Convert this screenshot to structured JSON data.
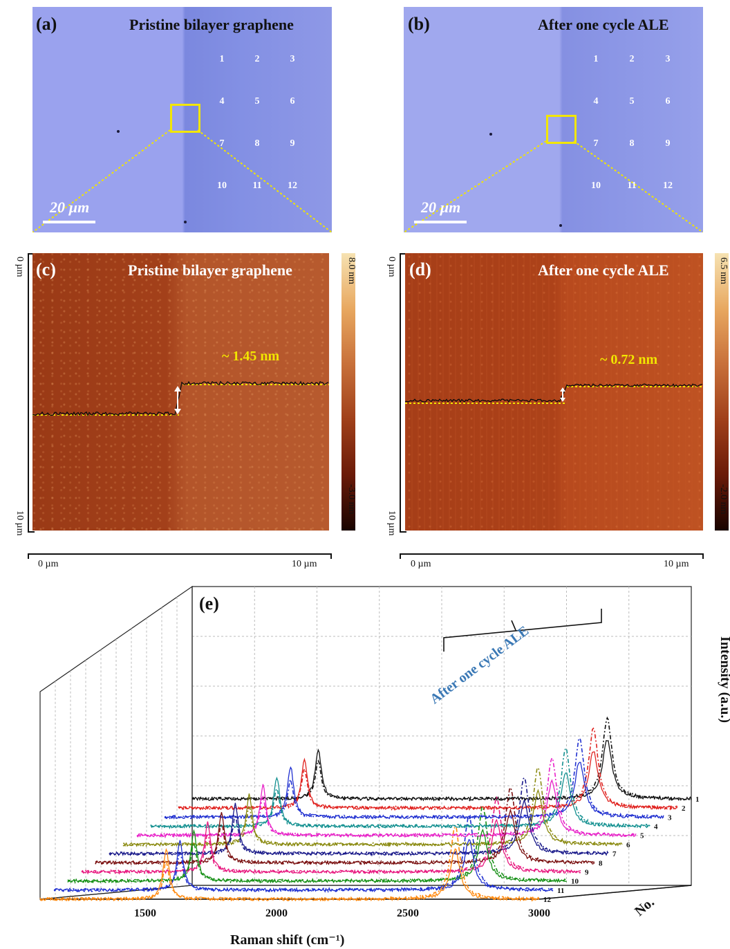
{
  "panels": {
    "a": {
      "label": "(a)",
      "title": "Pristine bilayer graphene",
      "scalebar": "20 µm",
      "grid_numbers": [
        "1",
        "2",
        "3",
        "4",
        "5",
        "6",
        "7",
        "8",
        "9",
        "10",
        "11",
        "12"
      ]
    },
    "b": {
      "label": "(b)",
      "title": "After one cycle ALE",
      "scalebar": "20 µm",
      "grid_numbers": [
        "1",
        "2",
        "3",
        "4",
        "5",
        "6",
        "7",
        "8",
        "9",
        "10",
        "11",
        "12"
      ]
    },
    "c": {
      "label": "(c)",
      "title": "Pristine bilayer graphene",
      "step_height": "~ 1.45 nm",
      "colorbar_max": "8.0 nm",
      "colorbar_min": "-3.0 nm",
      "y_top": "0 µm",
      "y_bottom": "10 µm",
      "x_left": "0 µm",
      "x_right": "10 µm"
    },
    "d": {
      "label": "(d)",
      "title": "After one cycle ALE",
      "step_height": "~ 0.72 nm",
      "colorbar_max": "6.5 nm",
      "colorbar_min": "-2.0 nm",
      "y_top": "0 µm",
      "y_bottom": "10 µm",
      "x_left": "0 µm",
      "x_right": "10 µm"
    },
    "e": {
      "label": "(e)",
      "annotation": "After one cycle ALE",
      "xlabel": "Raman shift (cm⁻¹)",
      "zlabel": "Intensity (a.u.)",
      "depth_label": "No."
    }
  },
  "colors": {
    "optical_bg": "#8f98e6",
    "afm_bg": "#a8421a",
    "highlight": "#f2e600",
    "ale_text": "#3a78b5"
  },
  "chart_data": {
    "type": "line",
    "title": "",
    "xlabel": "Raman shift (cm⁻¹)",
    "ylabel": "Intensity (a.u.)",
    "depth_label": "No.",
    "xlim": [
      1100,
      3000
    ],
    "x_ticks": [
      1500,
      2000,
      2500,
      3000
    ],
    "depth_ticks": [
      "1",
      "2",
      "3",
      "4",
      "5",
      "6",
      "7",
      "8",
      "9",
      "10",
      "11",
      "12"
    ],
    "peaks": {
      "G": 1580,
      "2D": 2680
    },
    "series": [
      {
        "name": "1",
        "color": "#111111",
        "G_pristine": 0.8,
        "G_ale": 0.6,
        "2D_pristine": 0.95,
        "2D_ale": 1.3
      },
      {
        "name": "2",
        "color": "#e0221f",
        "G_pristine": 0.8,
        "G_ale": 0.62,
        "2D_pristine": 0.92,
        "2D_ale": 1.28
      },
      {
        "name": "3",
        "color": "#1f2fd0",
        "G_pristine": 0.82,
        "G_ale": 0.6,
        "2D_pristine": 0.9,
        "2D_ale": 1.27
      },
      {
        "name": "4",
        "color": "#139090",
        "G_pristine": 0.8,
        "G_ale": 0.6,
        "2D_pristine": 0.88,
        "2D_ale": 1.26
      },
      {
        "name": "5",
        "color": "#e820c8",
        "G_pristine": 0.8,
        "G_ale": 0.62,
        "2D_pristine": 0.86,
        "2D_ale": 1.25
      },
      {
        "name": "6",
        "color": "#8a8a10",
        "G_pristine": 0.8,
        "G_ale": 0.6,
        "2D_pristine": 0.85,
        "2D_ale": 1.24
      },
      {
        "name": "7",
        "color": "#1a1a8a",
        "G_pristine": 0.8,
        "G_ale": 0.6,
        "2D_pristine": 0.84,
        "2D_ale": 1.23
      },
      {
        "name": "8",
        "color": "#7a1010",
        "G_pristine": 0.8,
        "G_ale": 0.62,
        "2D_pristine": 0.83,
        "2D_ale": 1.22
      },
      {
        "name": "9",
        "color": "#e81a80",
        "G_pristine": 0.8,
        "G_ale": 0.6,
        "2D_pristine": 0.82,
        "2D_ale": 1.21
      },
      {
        "name": "10",
        "color": "#169016",
        "G_pristine": 0.8,
        "G_ale": 0.62,
        "2D_pristine": 0.81,
        "2D_ale": 1.2
      },
      {
        "name": "11",
        "color": "#1f2fd0",
        "G_pristine": 0.8,
        "G_ale": 0.6,
        "2D_pristine": 0.8,
        "2D_ale": 1.19
      },
      {
        "name": "12",
        "color": "#ff8a10",
        "G_pristine": 0.8,
        "G_ale": 0.6,
        "2D_pristine": 0.8,
        "2D_ale": 1.18
      }
    ]
  }
}
